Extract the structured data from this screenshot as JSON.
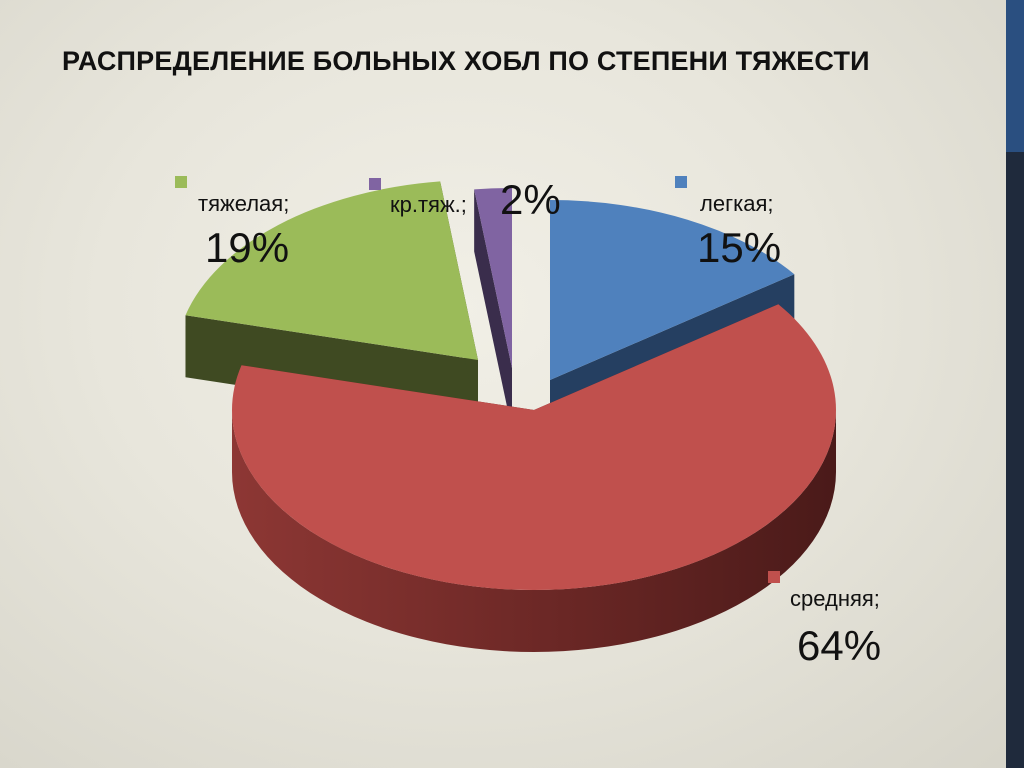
{
  "slide": {
    "title": "РАСПРЕДЕЛЕНИЕ БОЛЬНЫХ ХОБЛ ПО СТЕПЕНИ ТЯЖЕСТИ"
  },
  "chart_data": {
    "type": "pie",
    "title": "РАСПРЕДЕЛЕНИЕ БОЛЬНЫХ ХОБЛ ПО СТЕПЕНИ ТЯЖЕСТИ",
    "three_d": true,
    "exploded": true,
    "slices": [
      {
        "name": "легкая",
        "value": 15,
        "label": "легкая;",
        "percent_label": "15%",
        "color": "#4f81bd",
        "side_color": "#253f61"
      },
      {
        "name": "средняя",
        "value": 64,
        "label": "средняя;",
        "percent_label": "64%",
        "color": "#c0504d",
        "side_color": "#5c2220"
      },
      {
        "name": "тяжелая",
        "value": 19,
        "label": "тяжелая;",
        "percent_label": "19%",
        "color": "#9bbb59",
        "side_color": "#3f4a22"
      },
      {
        "name": "кр.тяж.",
        "value": 2,
        "label": "кр.тяж.;",
        "percent_label": "2%",
        "color": "#8064a2",
        "side_color": "#3a2d4c"
      }
    ]
  }
}
